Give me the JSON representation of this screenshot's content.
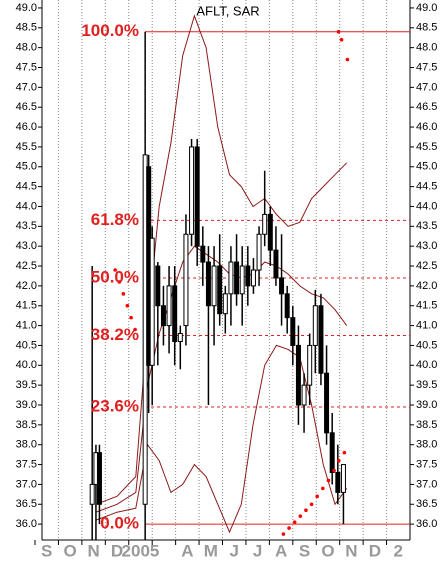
{
  "chart_data": {
    "type": "candlestick",
    "title": "AFLT, SAR",
    "categories": [
      "S",
      "O",
      "N",
      "D",
      "2005",
      null,
      "A",
      "M",
      "J",
      "J",
      "A",
      "S",
      "O",
      "N",
      "D",
      "2"
    ],
    "xlim": [
      0,
      16
    ],
    "ylim": [
      35.6,
      49.2
    ],
    "yticks": [
      {
        "value": 36,
        "label": "36.0"
      },
      {
        "value": 36.5,
        "label": "36.5"
      },
      {
        "value": 37,
        "label": "37.0"
      },
      {
        "value": 37.5,
        "label": "37.5"
      },
      {
        "value": 38,
        "label": "38.0"
      },
      {
        "value": 38.5,
        "label": "38.5"
      },
      {
        "value": 39,
        "label": "39.0"
      },
      {
        "value": 39.5,
        "label": "39.5"
      },
      {
        "value": 40,
        "label": "40.0"
      },
      {
        "value": 40.5,
        "label": "40.5"
      },
      {
        "value": 41,
        "label": "41.0"
      },
      {
        "value": 41.5,
        "label": "41.5"
      },
      {
        "value": 42,
        "label": "42.0"
      },
      {
        "value": 42.5,
        "label": "42.5"
      },
      {
        "value": 43,
        "label": "43.0"
      },
      {
        "value": 43.5,
        "label": "43.5"
      },
      {
        "value": 44,
        "label": "44.0"
      },
      {
        "value": 44.5,
        "label": "44.5"
      },
      {
        "value": 45,
        "label": "45.0"
      },
      {
        "value": 45.5,
        "label": "45.5"
      },
      {
        "value": 46,
        "label": "46.0"
      },
      {
        "value": 46.5,
        "label": "46.5"
      },
      {
        "value": 47,
        "label": "47.0"
      },
      {
        "value": 47.5,
        "label": "47.5"
      },
      {
        "value": 48,
        "label": "48.0"
      },
      {
        "value": 48.5,
        "label": "48.5"
      },
      {
        "value": 49,
        "label": "49.0"
      }
    ],
    "candles": {
      "color": "#000000",
      "x": [
        2.44,
        2.6,
        2.75,
        4.7,
        4.85,
        5.0,
        5.24,
        5.48,
        5.72,
        5.96,
        6.2,
        6.44,
        6.68,
        6.92,
        7.16,
        7.4,
        7.64,
        7.88,
        8.12,
        8.36,
        8.6,
        8.84,
        9.08,
        9.32,
        9.56,
        9.8,
        10.04,
        10.28,
        10.52,
        10.76,
        11.0,
        11.24,
        11.48,
        11.72,
        11.96,
        12.2,
        12.44,
        12.68,
        12.92,
        13.16
      ],
      "open": [
        36.5,
        37.0,
        37.8,
        36.5,
        45.0,
        40.0,
        42.5,
        41.5,
        41.0,
        42.0,
        40.6,
        41.0,
        43.3,
        45.5,
        43.0,
        42.6,
        41.5,
        42.5,
        41.3,
        41.8,
        42.6,
        41.8,
        42.5,
        42.0,
        42.4,
        43.3,
        43.8,
        42.9,
        42.2,
        41.8,
        41.2,
        40.5,
        39.0,
        39.5,
        40.5,
        41.5,
        39.8,
        38.3,
        37.3,
        36.8
      ],
      "high": [
        42.5,
        38.0,
        38.0,
        48.4,
        45.3,
        43.5,
        42.6,
        42.0,
        42.5,
        42.5,
        41.0,
        43.8,
        45.7,
        45.7,
        43.5,
        43.0,
        43.0,
        43.3,
        42.0,
        43.0,
        43.3,
        43.0,
        43.0,
        42.7,
        43.5,
        44.9,
        44.0,
        43.5,
        43.3,
        42.0,
        41.5,
        41.0,
        39.8,
        40.8,
        41.9,
        41.8,
        40.5,
        38.8,
        38.0,
        37.5
      ],
      "low": [
        35.6,
        35.6,
        36.0,
        35.6,
        38.8,
        39.0,
        40.0,
        40.5,
        40.3,
        40.0,
        39.9,
        40.5,
        43.0,
        42.5,
        42.0,
        39.0,
        40.5,
        41.0,
        40.8,
        41.0,
        41.5,
        41.0,
        41.5,
        41.8,
        42.0,
        43.0,
        42.5,
        42.0,
        41.0,
        40.8,
        40.0,
        38.5,
        38.3,
        39.0,
        39.8,
        39.5,
        38.0,
        37.0,
        36.5,
        36.0
      ],
      "close": [
        37.0,
        37.8,
        36.5,
        45.3,
        40.0,
        43.2,
        41.5,
        41.0,
        42.0,
        40.6,
        40.8,
        43.3,
        45.5,
        43.0,
        42.6,
        41.5,
        42.5,
        41.3,
        41.8,
        42.6,
        41.8,
        42.5,
        42.0,
        42.4,
        43.3,
        43.8,
        42.9,
        42.2,
        41.8,
        41.2,
        40.5,
        39.0,
        39.5,
        40.5,
        41.5,
        39.8,
        38.3,
        37.3,
        36.8,
        37.5
      ]
    },
    "sar": {
      "color": "#ff0000",
      "x": [
        3.42,
        3.6,
        3.77,
        3.94,
        4.1,
        4.27,
        10.6,
        10.84,
        11.08,
        11.32,
        11.56,
        11.8,
        12.04,
        12.28,
        12.52,
        12.76,
        12.96,
        13.2,
        12.95,
        13.08,
        13.33
      ],
      "values": [
        42.4,
        42.1,
        41.8,
        41.5,
        41.2,
        40.9,
        35.75,
        35.9,
        36.05,
        36.2,
        36.35,
        36.5,
        36.7,
        36.9,
        37.1,
        37.35,
        37.6,
        37.8,
        48.4,
        48.2,
        47.7
      ]
    },
    "bands": {
      "color": "#8b1a1a",
      "x": [
        2.6,
        3.5,
        4.3,
        4.8,
        5.3,
        5.8,
        6.3,
        6.8,
        7.3,
        7.8,
        8.3,
        8.8,
        9.3,
        9.8,
        10.3,
        10.8,
        11.3,
        11.8,
        12.3,
        12.8,
        13.3
      ],
      "upper": [
        36.5,
        36.7,
        37.2,
        41.0,
        44.0,
        45.6,
        47.8,
        48.8,
        48.0,
        46.0,
        44.8,
        44.5,
        44.0,
        44.2,
        43.8,
        43.5,
        43.6,
        44.2,
        44.5,
        44.8,
        45.1
      ],
      "middle": [
        36.3,
        36.5,
        36.8,
        39.5,
        40.8,
        41.7,
        42.6,
        43.0,
        42.8,
        42.6,
        42.3,
        42.2,
        42.3,
        42.6,
        42.5,
        42.3,
        42.0,
        41.8,
        41.7,
        41.4,
        41.0
      ],
      "lower": [
        36.1,
        36.3,
        36.4,
        38.0,
        37.6,
        36.8,
        37.0,
        37.5,
        37.2,
        36.5,
        35.8,
        36.5,
        38.5,
        40.0,
        40.5,
        40.4,
        40.2,
        39.0,
        37.5,
        36.5,
        36.9
      ]
    },
    "fibonacci": {
      "color": "#e02020",
      "labels": [
        "100.0%",
        "61.8%",
        "50.0%",
        "38.2%",
        "23.6%",
        "0.0%"
      ],
      "prices": [
        48.4,
        43.65,
        42.2,
        40.75,
        38.95,
        36.0
      ]
    },
    "grid": true
  }
}
